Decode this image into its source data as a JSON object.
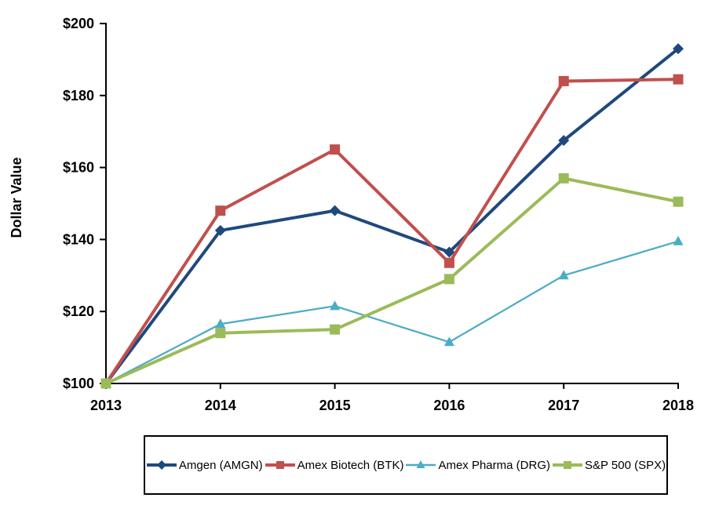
{
  "chart_data": {
    "type": "line",
    "title": "",
    "xlabel": "",
    "ylabel": "Dollar Value",
    "x_labels": [
      "2013",
      "2014",
      "2015",
      "2016",
      "2017",
      "2018"
    ],
    "y_ticks": [
      100,
      120,
      140,
      160,
      180,
      200
    ],
    "y_tick_labels": [
      "$100",
      "$120",
      "$140",
      "$160",
      "$180",
      "$200"
    ],
    "ylim": [
      100,
      200
    ],
    "grid": false,
    "legend_position": "bottom",
    "axis_color": "#000000",
    "background_color": "#ffffff",
    "series": [
      {
        "name": "Amgen (AMGN)",
        "color": "#1F497D",
        "marker": "diamond",
        "line_width": 4,
        "values": [
          100,
          142.5,
          148,
          136.5,
          167.5,
          193
        ]
      },
      {
        "name": "Amex Biotech (BTK)",
        "color": "#C0504D",
        "marker": "square",
        "line_width": 4,
        "values": [
          100,
          148,
          165,
          133.5,
          184,
          184.5
        ]
      },
      {
        "name": "Amex Pharma (DRG)",
        "color": "#4BACC6",
        "marker": "triangle",
        "line_width": 2.25,
        "values": [
          100,
          116.5,
          121.5,
          111.5,
          130,
          139.5
        ]
      },
      {
        "name": "S&P 500 (SPX)",
        "color": "#9BBB59",
        "marker": "square",
        "line_width": 4,
        "values": [
          100,
          114,
          115,
          129,
          157,
          150.5
        ]
      }
    ]
  }
}
